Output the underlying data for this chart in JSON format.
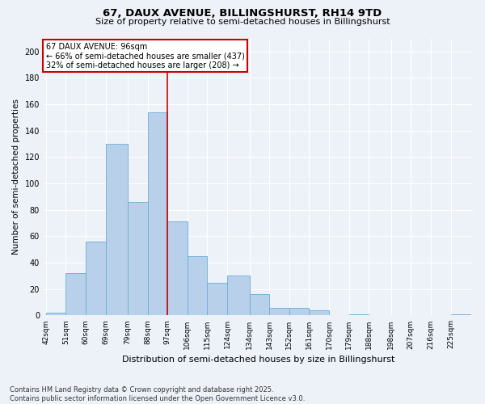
{
  "title": "67, DAUX AVENUE, BILLINGSHURST, RH14 9TD",
  "subtitle": "Size of property relative to semi-detached houses in Billingshurst",
  "xlabel": "Distribution of semi-detached houses by size in Billingshurst",
  "ylabel": "Number of semi-detached properties",
  "bar_labels": [
    "42sqm",
    "51sqm",
    "60sqm",
    "69sqm",
    "79sqm",
    "88sqm",
    "97sqm",
    "106sqm",
    "115sqm",
    "124sqm",
    "134sqm",
    "143sqm",
    "152sqm",
    "161sqm",
    "170sqm",
    "179sqm",
    "188sqm",
    "198sqm",
    "207sqm",
    "216sqm",
    "225sqm"
  ],
  "bar_values": [
    2,
    32,
    56,
    130,
    86,
    154,
    71,
    45,
    25,
    30,
    16,
    6,
    6,
    4,
    0,
    1,
    0,
    0,
    0,
    0,
    1
  ],
  "bar_color": "#b8d0ea",
  "bar_edge_color": "#6aaed6",
  "annotation_title": "67 DAUX AVENUE: 96sqm",
  "annotation_line1": "← 66% of semi-detached houses are smaller (437)",
  "annotation_line2": "32% of semi-detached houses are larger (208) →",
  "annotation_box_color": "#ffffff",
  "annotation_box_edge": "#cc0000",
  "vline_color": "#cc0000",
  "ylim": [
    0,
    210
  ],
  "yticks": [
    0,
    20,
    40,
    60,
    80,
    100,
    120,
    140,
    160,
    180,
    200
  ],
  "bg_color": "#edf2f9",
  "grid_color": "#ffffff",
  "footer_line1": "Contains HM Land Registry data © Crown copyright and database right 2025.",
  "footer_line2": "Contains public sector information licensed under the Open Government Licence v3.0."
}
